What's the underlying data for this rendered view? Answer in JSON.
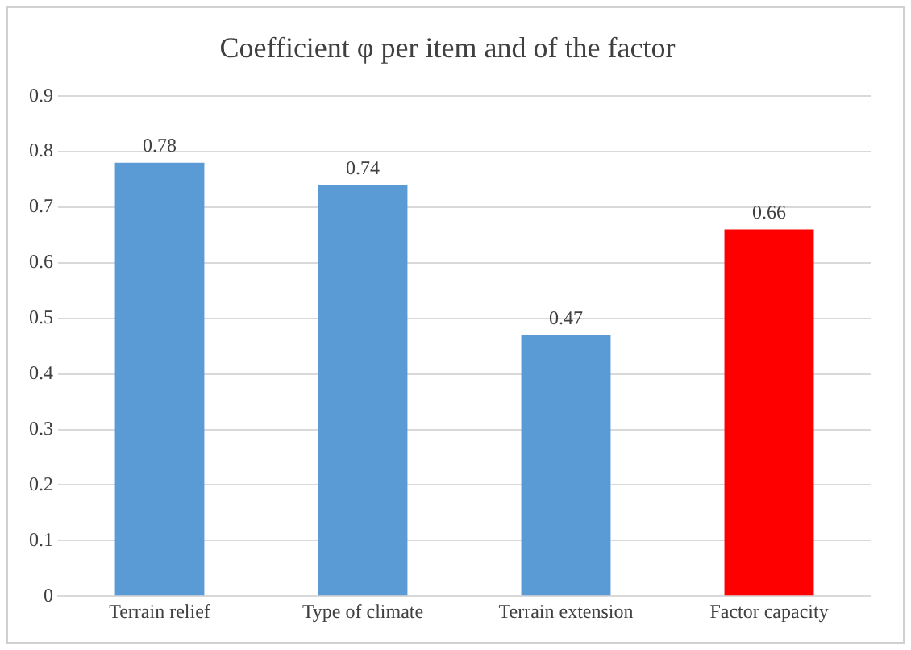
{
  "chart_data": {
    "type": "bar",
    "title": "Coefficient φ per item and of the factor",
    "categories": [
      "Terrain relief",
      "Type of climate",
      "Terrain extension",
      "Factor capacity"
    ],
    "values": [
      0.78,
      0.74,
      0.47,
      0.66
    ],
    "colors": [
      "#5b9bd5",
      "#5b9bd5",
      "#5b9bd5",
      "#ff0000"
    ],
    "ylim": [
      0,
      0.9
    ],
    "yticks": [
      0,
      0.1,
      0.2,
      0.3,
      0.4,
      0.5,
      0.6,
      0.7,
      0.8,
      0.9
    ],
    "grid": "y",
    "data_labels": true
  }
}
